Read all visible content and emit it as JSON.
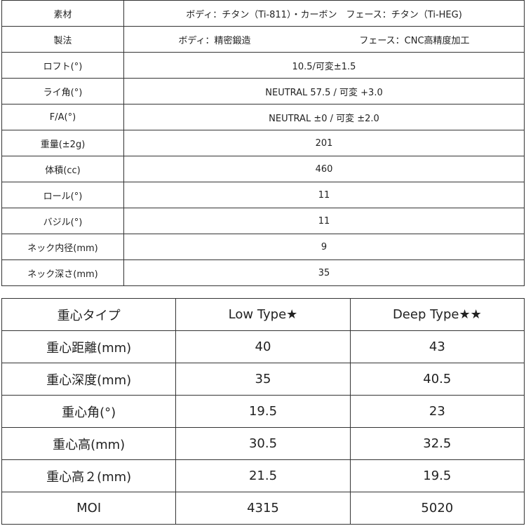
{
  "spec_table": [
    {
      "label": "素材",
      "value": "ボディ：チタン（Ti-811）・カーボン　フェース：チタン（Ti-HEG)"
    },
    {
      "label": "製法",
      "value_left": "ボディ：精密鍛造",
      "value_right": "フェース：CNC高精度加工"
    },
    {
      "label": "ロフト(°)",
      "value": "10.5/可変±1.5"
    },
    {
      "label": "ライ角(°)",
      "value": "NEUTRAL 57.5 / 可変 +3.0"
    },
    {
      "label": "F/A(°)",
      "value": "NEUTRAL ±0 / 可変 ±2.0"
    },
    {
      "label": "重量(±2g)",
      "value": "201"
    },
    {
      "label": "体積(cc)",
      "value": "460"
    },
    {
      "label": "ロール(°)",
      "value": "11"
    },
    {
      "label": "バジル(°)",
      "value": "11"
    },
    {
      "label": "ネック内径(mm)",
      "value": "9"
    },
    {
      "label": "ネック深さ(mm)",
      "value": "35"
    }
  ],
  "cg_table": {
    "headers": [
      "重心タイプ",
      "Low Type★",
      "Deep Type★★"
    ],
    "rows": [
      [
        "重心距離(mm)",
        "40",
        "43"
      ],
      [
        "重心深度(mm)",
        "35",
        "40.5"
      ],
      [
        "重心角(°)",
        "19.5",
        "23"
      ],
      [
        "重心高(mm)",
        "30.5",
        "32.5"
      ],
      [
        "重心高２(mm)",
        "21.5",
        "19.5"
      ],
      [
        "MOI",
        "4315",
        "5020"
      ]
    ]
  }
}
